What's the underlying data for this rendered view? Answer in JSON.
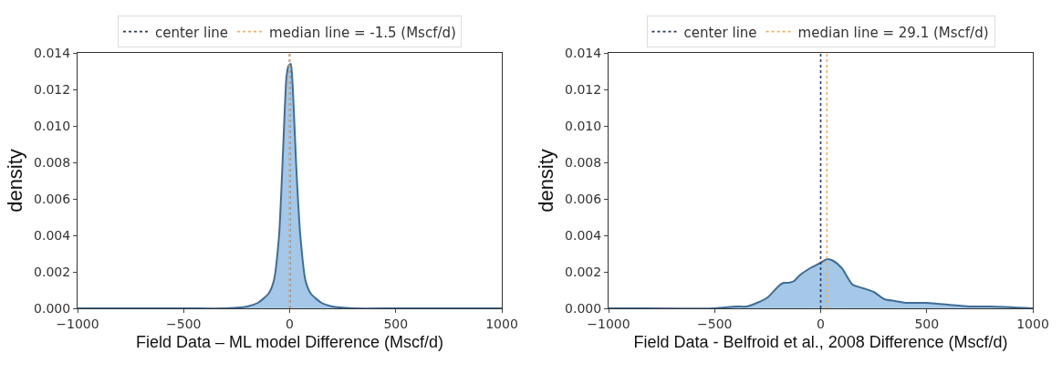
{
  "chart_data": [
    {
      "type": "area",
      "xlabel": "Field Data – ML model Difference (Mscf/d)",
      "ylabel": "density",
      "x": [
        -1000,
        -500,
        -300,
        -200,
        -150,
        -100,
        -75,
        -50,
        -30,
        -15,
        -5,
        5,
        15,
        30,
        50,
        75,
        100,
        150,
        200,
        300,
        500,
        1000
      ],
      "series": [
        {
          "color": "#5b9bd5",
          "values": [
            0,
            0,
            0,
            0.0001,
            0.0003,
            0.0008,
            0.0015,
            0.004,
            0.009,
            0.0127,
            0.0133,
            0.0134,
            0.012,
            0.008,
            0.004,
            0.0015,
            0.0008,
            0.0003,
            0.0001,
            0,
            0,
            0
          ]
        }
      ],
      "xlim": [
        -1000,
        1000
      ],
      "ylim": [
        0,
        0.014
      ],
      "xticks": [
        -1000,
        -500,
        0,
        500,
        1000
      ],
      "yticks": [
        {
          "value": 0,
          "label": "0.000"
        },
        {
          "value": 0.002,
          "label": "0.002"
        },
        {
          "value": 0.004,
          "label": "0.004"
        },
        {
          "value": 0.006,
          "label": "0.006"
        },
        {
          "value": 0.008,
          "label": "0.008"
        },
        {
          "value": 0.01,
          "label": "0.010"
        },
        {
          "value": 0.012,
          "label": "0.012"
        },
        {
          "value": 0.014,
          "label": "0.014"
        }
      ],
      "ref_lines": [
        {
          "axis": "x",
          "value": 0,
          "label": "center line",
          "color": "#2f3b5c",
          "line_style": "dotted"
        },
        {
          "axis": "x",
          "value": -1.5,
          "label": "median line = -1.5 (Mscf/d)",
          "color": "#f0b060",
          "line_style": "dotted"
        }
      ],
      "legend": "top"
    },
    {
      "type": "area",
      "xlabel": "Field Data - Belfroid et al., 2008 Difference (Mscf/d)",
      "ylabel": "density",
      "x": [
        -1000,
        -900,
        -500,
        -400,
        -350,
        -300,
        -250,
        -200,
        -175,
        -150,
        -125,
        -100,
        -50,
        0,
        30,
        60,
        100,
        150,
        200,
        250,
        300,
        350,
        400,
        500,
        600,
        700,
        800,
        1000
      ],
      "series": [
        {
          "color": "#5b9bd5",
          "values": [
            0,
            0,
            0,
            0.0001,
            0.0001,
            0.0003,
            0.0006,
            0.0012,
            0.0014,
            0.0014,
            0.0015,
            0.0018,
            0.0022,
            0.0025,
            0.0027,
            0.0026,
            0.0022,
            0.0013,
            0.0011,
            0.0009,
            0.0005,
            0.0004,
            0.0003,
            0.0003,
            0.0002,
            0.0001,
            0.0001,
            0
          ]
        }
      ],
      "xlim": [
        -1000,
        1000
      ],
      "ylim": [
        0,
        0.014
      ],
      "xticks": [
        -1000,
        -500,
        0,
        500,
        1000
      ],
      "yticks": [
        {
          "value": 0,
          "label": "0.000"
        },
        {
          "value": 0.002,
          "label": "0.002"
        },
        {
          "value": 0.004,
          "label": "0.004"
        },
        {
          "value": 0.006,
          "label": "0.006"
        },
        {
          "value": 0.008,
          "label": "0.008"
        },
        {
          "value": 0.01,
          "label": "0.010"
        },
        {
          "value": 0.012,
          "label": "0.012"
        },
        {
          "value": 0.014,
          "label": "0.014"
        }
      ],
      "ref_lines": [
        {
          "axis": "x",
          "value": 0,
          "label": "center line",
          "color": "#2f3b5c",
          "line_style": "dotted"
        },
        {
          "axis": "x",
          "value": 29.1,
          "label": "median line = 29.1 (Mscf/d)",
          "color": "#f0b060",
          "line_style": "dotted"
        }
      ],
      "legend": "top"
    }
  ]
}
